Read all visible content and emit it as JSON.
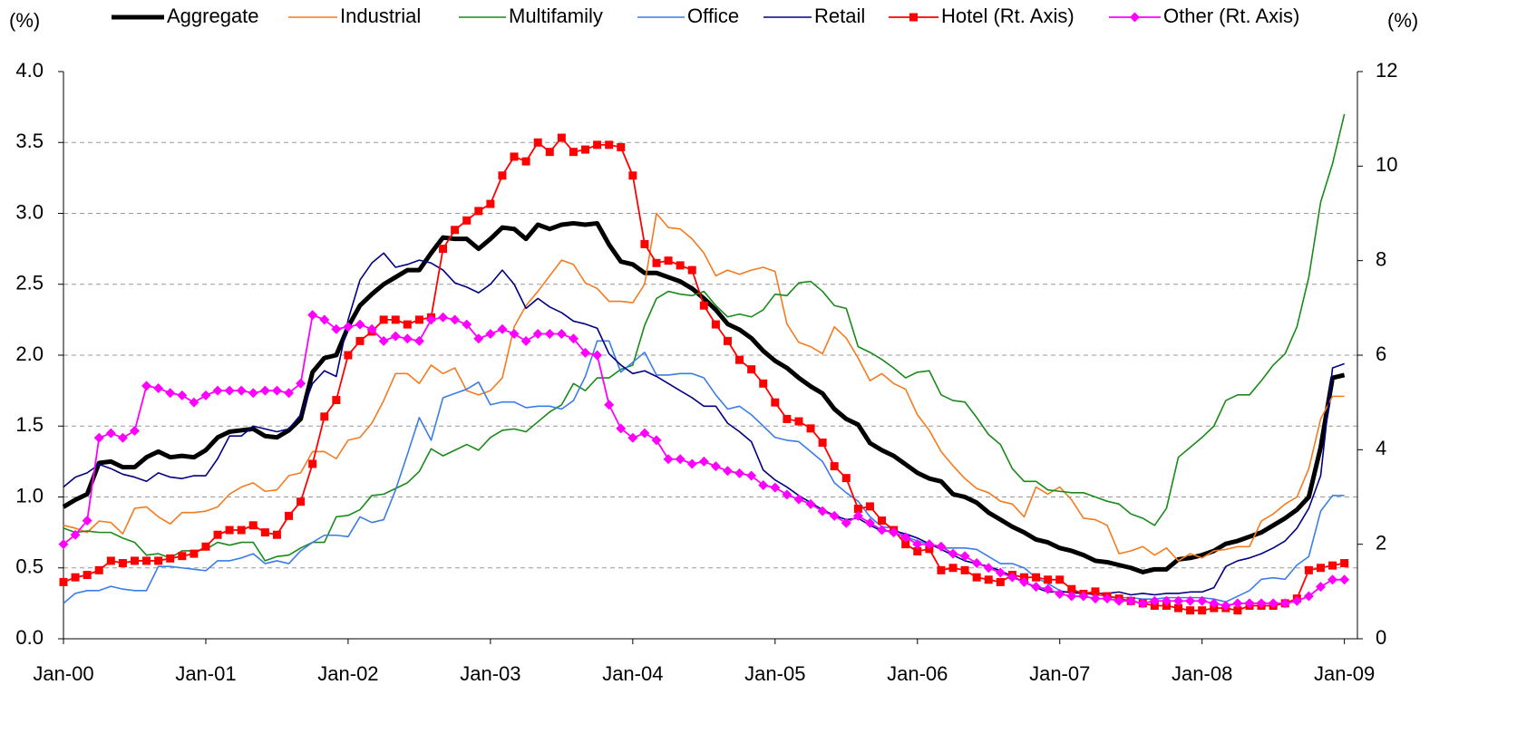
{
  "chart_data": {
    "type": "line",
    "ylabel": "(%)",
    "y2label": "(%)",
    "legend": "top",
    "grid": true,
    "ylim": [
      0,
      4
    ],
    "yticks": [
      {
        "value": 0,
        "label": "0.0"
      },
      0.5,
      {
        "value": 1,
        "label": "1.0"
      },
      1.5,
      {
        "value": 2,
        "label": "2.0"
      },
      2.5,
      {
        "value": 3,
        "label": "3.0"
      },
      3.5,
      {
        "value": 4,
        "label": "4.0"
      }
    ],
    "y2lim": [
      0,
      12
    ],
    "y2ticks": [
      0,
      2,
      4,
      6,
      8,
      10,
      12
    ],
    "categories": [
      "Jan-00",
      null,
      null,
      null,
      null,
      null,
      null,
      null,
      null,
      null,
      null,
      null,
      "Jan-01",
      null,
      null,
      null,
      null,
      null,
      null,
      null,
      null,
      null,
      null,
      null,
      "Jan-02",
      null,
      null,
      null,
      null,
      null,
      null,
      null,
      null,
      null,
      null,
      null,
      "Jan-03",
      null,
      null,
      null,
      null,
      null,
      null,
      null,
      null,
      null,
      null,
      null,
      "Jan-04",
      null,
      null,
      null,
      null,
      null,
      null,
      null,
      null,
      null,
      null,
      null,
      "Jan-05",
      null,
      null,
      null,
      null,
      null,
      null,
      null,
      null,
      null,
      null,
      null,
      "Jan-06",
      null,
      null,
      null,
      null,
      null,
      null,
      null,
      null,
      null,
      null,
      null,
      "Jan-07",
      null,
      null,
      null,
      null,
      null,
      null,
      null,
      null,
      null,
      null,
      null,
      "Jan-08",
      null,
      null,
      null,
      null,
      null,
      null,
      null,
      null,
      null,
      null,
      null,
      "Jan-09"
    ],
    "series": [
      {
        "name": "Aggregate",
        "color": "#000000",
        "values": [
          0.93,
          0.98,
          1.02,
          1.24,
          1.25,
          1.21,
          1.21,
          1.28,
          1.32,
          1.28,
          1.29,
          1.28,
          1.33,
          1.42,
          1.46,
          1.47,
          1.48,
          1.43,
          1.42,
          1.47,
          1.55,
          1.88,
          1.98,
          2.0,
          2.2,
          2.35,
          2.43,
          2.5,
          2.55,
          2.6,
          2.6,
          2.72,
          2.83,
          2.82,
          2.82,
          2.75,
          2.82,
          2.9,
          2.89,
          2.82,
          2.92,
          2.89,
          2.92,
          2.93,
          2.92,
          2.93,
          2.78,
          2.66,
          2.64,
          2.58,
          2.58,
          2.55,
          2.52,
          2.47,
          2.4,
          2.32,
          2.22,
          2.18,
          2.12,
          2.03,
          1.96,
          1.91,
          1.84,
          1.78,
          1.73,
          1.62,
          1.55,
          1.51,
          1.38,
          1.33,
          1.29,
          1.23,
          1.17,
          1.13,
          1.11,
          1.02,
          1.0,
          0.96,
          0.89,
          0.84,
          0.79,
          0.75,
          0.7,
          0.68,
          0.64,
          0.62,
          0.59,
          0.55,
          0.54,
          0.52,
          0.5,
          0.47,
          0.49,
          0.49,
          0.56,
          0.57,
          0.59,
          0.62,
          0.67,
          0.69,
          0.72,
          0.75,
          0.8,
          0.85,
          0.91,
          1.0,
          1.35,
          1.84,
          1.86
        ]
      },
      {
        "name": "Industrial",
        "color": "#f47b20",
        "values": [
          0.8,
          0.78,
          0.75,
          0.83,
          0.82,
          0.74,
          0.92,
          0.93,
          0.86,
          0.81,
          0.89,
          0.89,
          0.9,
          0.93,
          1.02,
          1.07,
          1.1,
          1.04,
          1.05,
          1.15,
          1.17,
          1.32,
          1.32,
          1.27,
          1.4,
          1.42,
          1.52,
          1.68,
          1.87,
          1.87,
          1.8,
          1.93,
          1.87,
          1.91,
          1.75,
          1.72,
          1.75,
          1.84,
          2.2,
          2.35,
          2.45,
          2.56,
          2.67,
          2.64,
          2.51,
          2.47,
          2.38,
          2.38,
          2.37,
          2.5,
          3.0,
          2.9,
          2.89,
          2.82,
          2.72,
          2.56,
          2.6,
          2.57,
          2.6,
          2.62,
          2.59,
          2.22,
          2.09,
          2.06,
          2.01,
          2.2,
          2.12,
          1.98,
          1.82,
          1.87,
          1.8,
          1.76,
          1.58,
          1.47,
          1.32,
          1.22,
          1.13,
          1.06,
          1.03,
          0.97,
          0.95,
          0.86,
          1.07,
          1.02,
          1.07,
          0.98,
          0.85,
          0.84,
          0.8,
          0.6,
          0.62,
          0.65,
          0.59,
          0.64,
          0.55,
          0.6,
          0.57,
          0.62,
          0.63,
          0.65,
          0.65,
          0.83,
          0.88,
          0.95,
          1.0,
          1.2,
          1.55,
          1.71,
          1.71
        ]
      },
      {
        "name": "Multifamily",
        "color": "#1a8a1a",
        "values": [
          0.78,
          0.75,
          0.76,
          0.75,
          0.75,
          0.71,
          0.68,
          0.59,
          0.6,
          0.57,
          0.62,
          0.62,
          0.63,
          0.68,
          0.66,
          0.68,
          0.68,
          0.55,
          0.58,
          0.59,
          0.64,
          0.68,
          0.68,
          0.86,
          0.87,
          0.91,
          1.01,
          1.02,
          1.06,
          1.1,
          1.18,
          1.34,
          1.29,
          1.33,
          1.37,
          1.33,
          1.42,
          1.47,
          1.48,
          1.46,
          1.53,
          1.6,
          1.65,
          1.8,
          1.75,
          1.84,
          1.84,
          1.9,
          1.93,
          2.21,
          2.4,
          2.45,
          2.43,
          2.42,
          2.45,
          2.35,
          2.27,
          2.29,
          2.27,
          2.32,
          2.43,
          2.42,
          2.51,
          2.52,
          2.45,
          2.35,
          2.33,
          2.06,
          2.02,
          1.97,
          1.91,
          1.84,
          1.88,
          1.89,
          1.72,
          1.68,
          1.67,
          1.56,
          1.44,
          1.37,
          1.2,
          1.11,
          1.11,
          1.05,
          1.04,
          1.03,
          1.03,
          1.0,
          0.97,
          0.95,
          0.88,
          0.85,
          0.8,
          0.92,
          1.28,
          1.35,
          1.42,
          1.5,
          1.68,
          1.72,
          1.72,
          1.82,
          1.93,
          2.01,
          2.2,
          2.55,
          3.08,
          3.35,
          3.7
        ]
      },
      {
        "name": "Office",
        "color": "#3b7de8",
        "values": [
          0.25,
          0.32,
          0.34,
          0.34,
          0.37,
          0.35,
          0.34,
          0.34,
          0.51,
          0.51,
          0.5,
          0.49,
          0.48,
          0.55,
          0.55,
          0.57,
          0.6,
          0.53,
          0.55,
          0.53,
          0.62,
          0.68,
          0.73,
          0.73,
          0.72,
          0.86,
          0.82,
          0.84,
          1.05,
          1.3,
          1.56,
          1.4,
          1.7,
          1.73,
          1.76,
          1.81,
          1.65,
          1.67,
          1.67,
          1.63,
          1.64,
          1.64,
          1.62,
          1.68,
          1.85,
          2.1,
          2.1,
          1.88,
          1.95,
          2.02,
          1.86,
          1.86,
          1.87,
          1.87,
          1.84,
          1.72,
          1.62,
          1.64,
          1.58,
          1.5,
          1.42,
          1.4,
          1.39,
          1.32,
          1.25,
          1.1,
          1.03,
          0.97,
          0.86,
          0.79,
          0.78,
          0.72,
          0.69,
          0.67,
          0.64,
          0.64,
          0.64,
          0.63,
          0.58,
          0.53,
          0.53,
          0.5,
          0.43,
          0.39,
          0.34,
          0.32,
          0.32,
          0.31,
          0.3,
          0.29,
          0.29,
          0.28,
          0.28,
          0.29,
          0.29,
          0.29,
          0.29,
          0.28,
          0.26,
          0.3,
          0.34,
          0.42,
          0.43,
          0.42,
          0.52,
          0.58,
          0.9,
          1.01,
          1.01
        ]
      },
      {
        "name": "Retail",
        "color": "#000080",
        "values": [
          1.07,
          1.14,
          1.17,
          1.23,
          1.2,
          1.16,
          1.14,
          1.11,
          1.17,
          1.14,
          1.13,
          1.15,
          1.15,
          1.27,
          1.43,
          1.43,
          1.5,
          1.48,
          1.46,
          1.48,
          1.58,
          1.8,
          1.89,
          1.85,
          2.25,
          2.53,
          2.65,
          2.72,
          2.62,
          2.64,
          2.67,
          2.65,
          2.6,
          2.51,
          2.48,
          2.44,
          2.5,
          2.6,
          2.5,
          2.33,
          2.4,
          2.34,
          2.3,
          2.24,
          2.22,
          2.19,
          2.01,
          1.93,
          1.87,
          1.89,
          1.85,
          1.8,
          1.75,
          1.7,
          1.64,
          1.64,
          1.52,
          1.46,
          1.39,
          1.19,
          1.12,
          1.07,
          1.01,
          0.96,
          0.91,
          0.87,
          0.84,
          0.85,
          0.8,
          0.76,
          0.76,
          0.74,
          0.71,
          0.67,
          0.63,
          0.59,
          0.55,
          0.53,
          0.51,
          0.48,
          0.44,
          0.4,
          0.36,
          0.33,
          0.33,
          0.33,
          0.32,
          0.32,
          0.32,
          0.33,
          0.31,
          0.32,
          0.31,
          0.32,
          0.32,
          0.33,
          0.33,
          0.36,
          0.51,
          0.55,
          0.57,
          0.6,
          0.64,
          0.69,
          0.78,
          0.92,
          1.15,
          1.91,
          1.94
        ]
      },
      {
        "name": "Hotel (Rt. Axis)",
        "color": "#ff0000",
        "axis": "y2",
        "marker": "square",
        "values": [
          1.2,
          1.3,
          1.35,
          1.45,
          1.65,
          1.6,
          1.65,
          1.65,
          1.65,
          1.7,
          1.75,
          1.8,
          1.95,
          2.2,
          2.3,
          2.3,
          2.4,
          2.25,
          2.2,
          2.6,
          2.9,
          3.7,
          4.7,
          5.05,
          6.0,
          6.3,
          6.5,
          6.75,
          6.75,
          6.65,
          6.75,
          6.8,
          8.25,
          8.65,
          8.85,
          9.05,
          9.2,
          9.8,
          10.2,
          10.1,
          10.5,
          10.3,
          10.6,
          10.3,
          10.35,
          10.45,
          10.45,
          10.4,
          9.8,
          8.35,
          7.95,
          8.0,
          7.9,
          7.8,
          7.05,
          6.65,
          6.3,
          5.9,
          5.7,
          5.4,
          5.0,
          4.65,
          4.6,
          4.45,
          4.15,
          3.65,
          3.4,
          2.75,
          2.8,
          2.5,
          2.3,
          2.0,
          1.85,
          1.9,
          1.45,
          1.5,
          1.45,
          1.3,
          1.25,
          1.2,
          1.35,
          1.3,
          1.3,
          1.25,
          1.25,
          1.05,
          0.95,
          1.0,
          0.9,
          0.85,
          0.8,
          0.75,
          0.7,
          0.7,
          0.65,
          0.6,
          0.6,
          0.65,
          0.65,
          0.6,
          0.7,
          0.7,
          0.7,
          0.75,
          0.85,
          1.45,
          1.5,
          1.55,
          1.6
        ]
      },
      {
        "name": "Other (Rt. Axis)",
        "color": "#ff00ff",
        "axis": "y2",
        "marker": "diamond",
        "values": [
          2.0,
          2.2,
          2.5,
          4.25,
          4.35,
          4.25,
          4.4,
          5.35,
          5.3,
          5.2,
          5.15,
          5.0,
          5.15,
          5.25,
          5.25,
          5.25,
          5.2,
          5.25,
          5.25,
          5.2,
          5.4,
          6.85,
          6.75,
          6.55,
          6.6,
          6.65,
          6.55,
          6.3,
          6.4,
          6.35,
          6.3,
          6.75,
          6.8,
          6.75,
          6.65,
          6.35,
          6.45,
          6.55,
          6.45,
          6.3,
          6.45,
          6.45,
          6.45,
          6.35,
          6.05,
          6.0,
          4.95,
          4.45,
          4.25,
          4.35,
          4.2,
          3.8,
          3.8,
          3.7,
          3.75,
          3.65,
          3.55,
          3.5,
          3.45,
          3.25,
          3.2,
          3.05,
          2.95,
          2.85,
          2.7,
          2.6,
          2.45,
          2.6,
          2.45,
          2.3,
          2.25,
          2.15,
          2.0,
          2.0,
          1.95,
          1.8,
          1.75,
          1.6,
          1.5,
          1.4,
          1.3,
          1.2,
          1.1,
          1.05,
          0.95,
          0.9,
          0.9,
          0.85,
          0.85,
          0.8,
          0.8,
          0.75,
          0.8,
          0.8,
          0.8,
          0.8,
          0.8,
          0.75,
          0.7,
          0.75,
          0.75,
          0.75,
          0.75,
          0.75,
          0.8,
          0.9,
          1.1,
          1.25,
          1.25
        ]
      }
    ]
  }
}
